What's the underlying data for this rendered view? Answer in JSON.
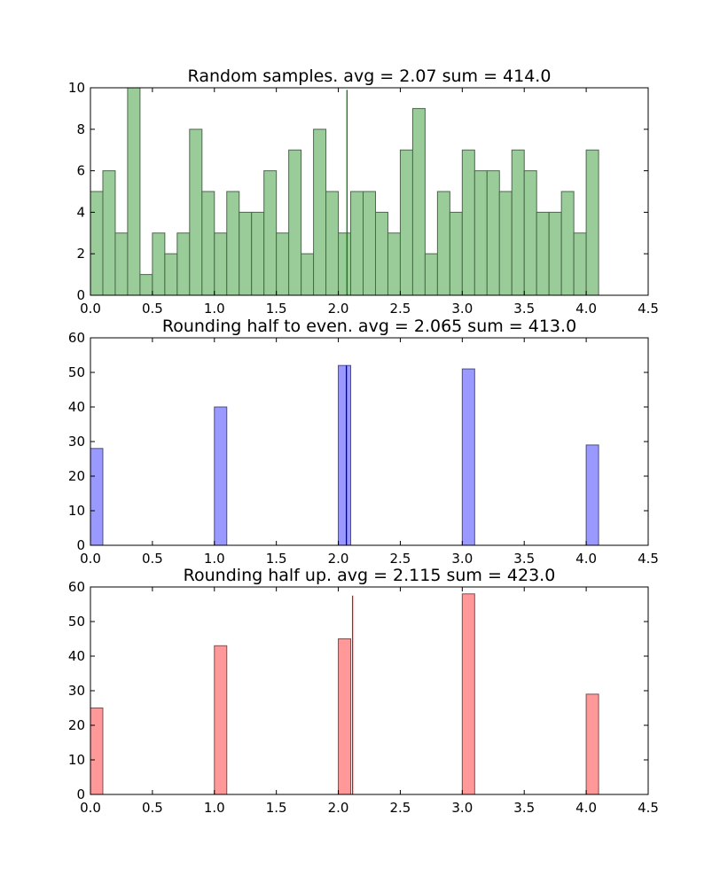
{
  "chart_data": [
    {
      "type": "bar",
      "title": "Random samples. avg = 2.07 sum = 414.0",
      "bin_width": 0.1,
      "x_starts": [
        0.0,
        0.1,
        0.2,
        0.3,
        0.4,
        0.5,
        0.6,
        0.7,
        0.8,
        0.9,
        1.0,
        1.1,
        1.2,
        1.3,
        1.4,
        1.5,
        1.6,
        1.7,
        1.8,
        1.9,
        2.0,
        2.1,
        2.2,
        2.3,
        2.4,
        2.5,
        2.6,
        2.7,
        2.8,
        2.9,
        3.0,
        3.1,
        3.2,
        3.3,
        3.4,
        3.5,
        3.6,
        3.7,
        3.8,
        3.9,
        4.0
      ],
      "values": [
        5,
        6,
        3,
        10,
        1,
        3,
        2,
        3,
        8,
        5,
        3,
        5,
        4,
        4,
        6,
        3,
        7,
        2,
        8,
        5,
        3,
        5,
        5,
        4,
        3,
        7,
        9,
        2,
        5,
        4,
        7,
        6,
        6,
        5,
        7,
        6,
        4,
        4,
        5,
        3,
        7
      ],
      "avg_line": 2.07,
      "avg_line_height": 9.9,
      "xlim": [
        0,
        4.5
      ],
      "ylim": [
        0,
        10
      ],
      "xticks": [
        "0.0",
        "0.5",
        "1.0",
        "1.5",
        "2.0",
        "2.5",
        "3.0",
        "3.5",
        "4.0",
        "4.5"
      ],
      "yticks": [
        "0",
        "2",
        "4",
        "6",
        "8",
        "10"
      ],
      "bar_color": "#99cc99",
      "edge_color": "#4d664d",
      "line_color": "#008000"
    },
    {
      "type": "bar",
      "title": "Rounding half to even. avg = 2.065 sum = 413.0",
      "bin_width": 0.1,
      "x_starts": [
        0.0,
        1.0,
        2.0,
        3.0,
        4.0
      ],
      "values": [
        28,
        40,
        52,
        51,
        29
      ],
      "avg_line": 2.065,
      "avg_line_height": 52,
      "xlim": [
        0,
        4.5
      ],
      "ylim": [
        0,
        60
      ],
      "xticks": [
        "0.0",
        "0.5",
        "1.0",
        "1.5",
        "2.0",
        "2.5",
        "3.0",
        "3.5",
        "4.0",
        "4.5"
      ],
      "yticks": [
        "0",
        "10",
        "20",
        "30",
        "40",
        "50",
        "60"
      ],
      "bar_color": "#9999ff",
      "edge_color": "#4d4d80",
      "line_color": "#000080"
    },
    {
      "type": "bar",
      "title": "Rounding half up. avg = 2.115 sum = 423.0",
      "bin_width": 0.1,
      "x_starts": [
        0.0,
        1.0,
        2.0,
        3.0,
        4.0
      ],
      "values": [
        25,
        43,
        45,
        58,
        29
      ],
      "avg_line": 2.115,
      "avg_line_height": 57.5,
      "xlim": [
        0,
        4.5
      ],
      "ylim": [
        0,
        60
      ],
      "xticks": [
        "0.0",
        "0.5",
        "1.0",
        "1.5",
        "2.0",
        "2.5",
        "3.0",
        "3.5",
        "4.0",
        "4.5"
      ],
      "yticks": [
        "0",
        "10",
        "20",
        "30",
        "40",
        "50",
        "60"
      ],
      "bar_color": "#ff9999",
      "edge_color": "#804d4d",
      "line_color": "#ff0000"
    }
  ]
}
